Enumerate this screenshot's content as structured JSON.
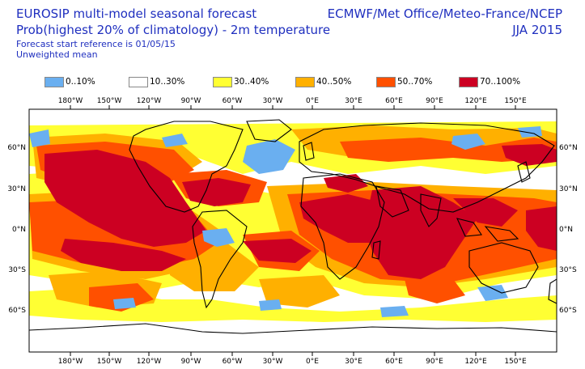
{
  "header": {
    "title_line1": "EUROSIP multi-model seasonal forecast",
    "title_line2": "Prob(highest 20% of climatology) - 2m temperature",
    "title_line3": "Forecast start reference is 01/05/15",
    "title_line4": "Unweighted mean",
    "source": "ECMWF/Met Office/Meteo-France/NCEP",
    "season": "JJA 2015"
  },
  "legend": [
    {
      "label": "0..10%",
      "color": "#6aaff0"
    },
    {
      "label": "10..30%",
      "color": "#ffffff"
    },
    {
      "label": "30..40%",
      "color": "#ffff33"
    },
    {
      "label": "40..50%",
      "color": "#ffb000"
    },
    {
      "label": "50..70%",
      "color": "#ff5000"
    },
    {
      "label": "70..100%",
      "color": "#cc0022"
    }
  ],
  "lon_labels": [
    "180°W",
    "150°W",
    "120°W",
    "90°W",
    "60°W",
    "30°W",
    "0°E",
    "30°E",
    "60°E",
    "90°E",
    "120°E",
    "150°E"
  ],
  "lat_labels_left": [
    "60°N",
    "30°N",
    "0°N",
    "30°S",
    "60°S"
  ],
  "lat_labels_right": [
    "60°N",
    "30°N",
    "0°N",
    "30°S",
    "60°S"
  ]
}
